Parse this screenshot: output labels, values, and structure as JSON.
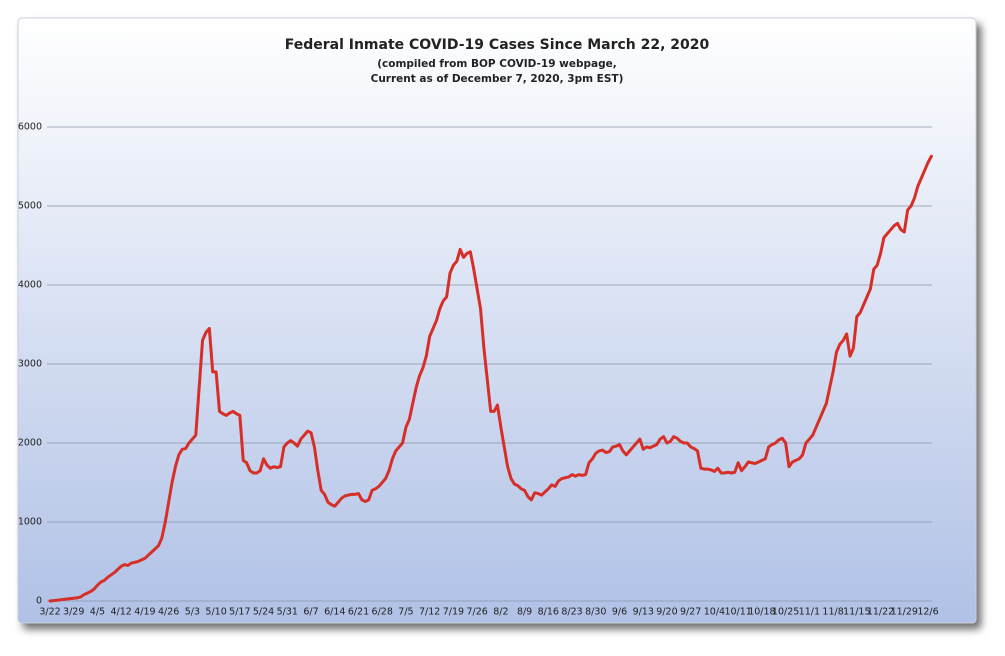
{
  "chart_data": {
    "type": "line",
    "title": "Federal Inmate COVID-19 Cases Since March 22, 2020",
    "subtitle": "(compiled from BOP COVID-19 webpage,",
    "subtitle2": "Current as of December 7, 2020, 3pm EST)",
    "categories": [
      "3/22",
      null,
      null,
      null,
      null,
      null,
      null,
      "3/29",
      null,
      null,
      null,
      null,
      null,
      null,
      "4/5",
      null,
      null,
      null,
      null,
      null,
      null,
      "4/12",
      null,
      null,
      null,
      null,
      null,
      null,
      "4/19",
      null,
      null,
      null,
      null,
      null,
      null,
      "4/26",
      null,
      null,
      null,
      null,
      null,
      null,
      "5/3",
      null,
      null,
      null,
      null,
      null,
      null,
      "5/10",
      null,
      null,
      null,
      null,
      null,
      null,
      "5/17",
      null,
      null,
      null,
      null,
      null,
      null,
      "5/24",
      null,
      null,
      null,
      null,
      null,
      null,
      "5/31",
      null,
      null,
      null,
      null,
      null,
      null,
      "6/7",
      null,
      null,
      null,
      null,
      null,
      null,
      "6/14",
      null,
      null,
      null,
      null,
      null,
      null,
      "6/21",
      null,
      null,
      null,
      null,
      null,
      null,
      "6/28",
      null,
      null,
      null,
      null,
      null,
      null,
      "7/5",
      null,
      null,
      null,
      null,
      null,
      null,
      "7/12",
      null,
      null,
      null,
      null,
      null,
      null,
      "7/19",
      null,
      null,
      null,
      null,
      null,
      null,
      "7/26",
      null,
      null,
      null,
      null,
      null,
      null,
      "8/2",
      null,
      null,
      null,
      null,
      null,
      null,
      "8/9",
      null,
      null,
      null,
      null,
      null,
      null,
      "8/16",
      null,
      null,
      null,
      null,
      null,
      null,
      "8/23",
      null,
      null,
      null,
      null,
      null,
      null,
      "8/30",
      null,
      null,
      null,
      null,
      null,
      null,
      "9/6",
      null,
      null,
      null,
      null,
      null,
      null,
      "9/13",
      null,
      null,
      null,
      null,
      null,
      null,
      "9/20",
      null,
      null,
      null,
      null,
      null,
      null,
      "9/27",
      null,
      null,
      null,
      null,
      null,
      null,
      "10/4",
      null,
      null,
      null,
      null,
      null,
      null,
      "10/11",
      null,
      null,
      null,
      null,
      null,
      null,
      "10/18",
      null,
      null,
      null,
      null,
      null,
      null,
      "10/25",
      null,
      null,
      null,
      null,
      null,
      null,
      "11/1",
      null,
      null,
      null,
      null,
      null,
      null,
      "11/8",
      null,
      null,
      null,
      null,
      null,
      null,
      "11/15",
      null,
      null,
      null,
      null,
      null,
      null,
      "11/22",
      null,
      null,
      null,
      null,
      null,
      null,
      "11/29",
      null,
      null,
      null,
      null,
      null,
      null,
      "12/6",
      null
    ],
    "values": [
      0,
      5,
      10,
      15,
      20,
      25,
      30,
      35,
      40,
      50,
      80,
      100,
      120,
      150,
      200,
      240,
      260,
      300,
      330,
      360,
      400,
      440,
      460,
      450,
      480,
      490,
      500,
      520,
      540,
      580,
      620,
      660,
      700,
      800,
      1000,
      1250,
      1500,
      1700,
      1850,
      1920,
      1930,
      2000,
      2050,
      2100,
      2700,
      3300,
      3400,
      3450,
      2900,
      2900,
      2400,
      2370,
      2350,
      2380,
      2400,
      2370,
      2350,
      1780,
      1750,
      1650,
      1620,
      1620,
      1650,
      1800,
      1720,
      1680,
      1700,
      1690,
      1700,
      1950,
      2000,
      2030,
      2000,
      1960,
      2050,
      2100,
      2150,
      2130,
      1950,
      1650,
      1400,
      1350,
      1250,
      1220,
      1200,
      1250,
      1300,
      1330,
      1340,
      1350,
      1350,
      1360,
      1280,
      1260,
      1280,
      1400,
      1420,
      1450,
      1500,
      1550,
      1650,
      1800,
      1900,
      1950,
      2000,
      2200,
      2300,
      2500,
      2700,
      2850,
      2950,
      3100,
      3350,
      3450,
      3550,
      3700,
      3800,
      3850,
      4150,
      4250,
      4300,
      4450,
      4350,
      4400,
      4420,
      4200,
      3950,
      3700,
      3200,
      2800,
      2400,
      2400,
      2480,
      2200,
      1950,
      1700,
      1550,
      1480,
      1460,
      1420,
      1400,
      1320,
      1280,
      1370,
      1360,
      1340,
      1380,
      1420,
      1470,
      1450,
      1520,
      1550,
      1560,
      1570,
      1600,
      1580,
      1600,
      1590,
      1600,
      1750,
      1800,
      1870,
      1900,
      1910,
      1880,
      1890,
      1950,
      1960,
      1980,
      1900,
      1850,
      1900,
      1950,
      2000,
      2050,
      1920,
      1950,
      1940,
      1960,
      1980,
      2050,
      2080,
      2000,
      2020,
      2080,
      2060,
      2020,
      2000,
      2000,
      1950,
      1930,
      1900,
      1680,
      1670,
      1670,
      1660,
      1640,
      1680,
      1620,
      1620,
      1630,
      1620,
      1630,
      1750,
      1650,
      1700,
      1760,
      1750,
      1740,
      1760,
      1780,
      1800,
      1950,
      1980,
      2000,
      2040,
      2060,
      2000,
      1700,
      1760,
      1780,
      1800,
      1850,
      2000,
      2050,
      2100,
      2200,
      2300,
      2400,
      2500,
      2700,
      2900,
      3150,
      3250,
      3300,
      3380,
      3100,
      3200,
      3600,
      3650,
      3750,
      3850,
      3950,
      4200,
      4250,
      4400,
      4600,
      4650,
      4700,
      4750,
      4780,
      4700,
      4670,
      4950,
      5000,
      5100,
      5250,
      5350,
      5450,
      5550,
      5630
    ],
    "color": "#d62f27",
    "ylim": [
      0,
      6000
    ],
    "yticks": [
      0,
      1000,
      2000,
      3000,
      4000,
      5000,
      6000
    ],
    "grid": true
  }
}
